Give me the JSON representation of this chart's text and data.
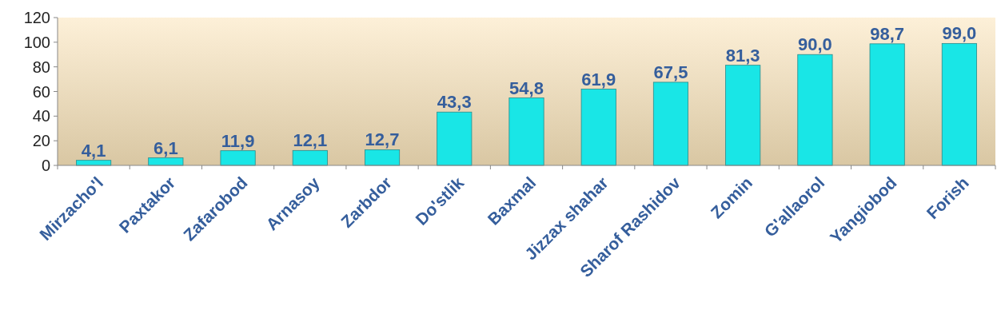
{
  "chart_data": {
    "type": "bar",
    "categories": [
      "Mirzacho'l",
      "Paxtakor",
      "Zafarobod",
      "Arnasoy",
      "Zarbdor",
      "Do'stlik",
      "Baxmal",
      "Jizzax shahar",
      "Sharof Rashidov",
      "Zomin",
      "G'allaorol",
      "Yangiobod",
      "Forish"
    ],
    "values": [
      4.1,
      6.1,
      11.9,
      12.1,
      12.7,
      43.3,
      54.8,
      61.9,
      67.5,
      81.3,
      90.0,
      98.7,
      99.0
    ],
    "value_labels": [
      "4,1",
      "6,1",
      "11,9",
      "12,1",
      "12,7",
      "43,3",
      "54,8",
      "61,9",
      "67,5",
      "81,3",
      "90,0",
      "98,7",
      "99,0"
    ],
    "color": "#19e6e6",
    "ylim": [
      0,
      120
    ],
    "yticks": [
      0,
      20,
      40,
      60,
      80,
      100,
      120
    ],
    "grid": false
  }
}
